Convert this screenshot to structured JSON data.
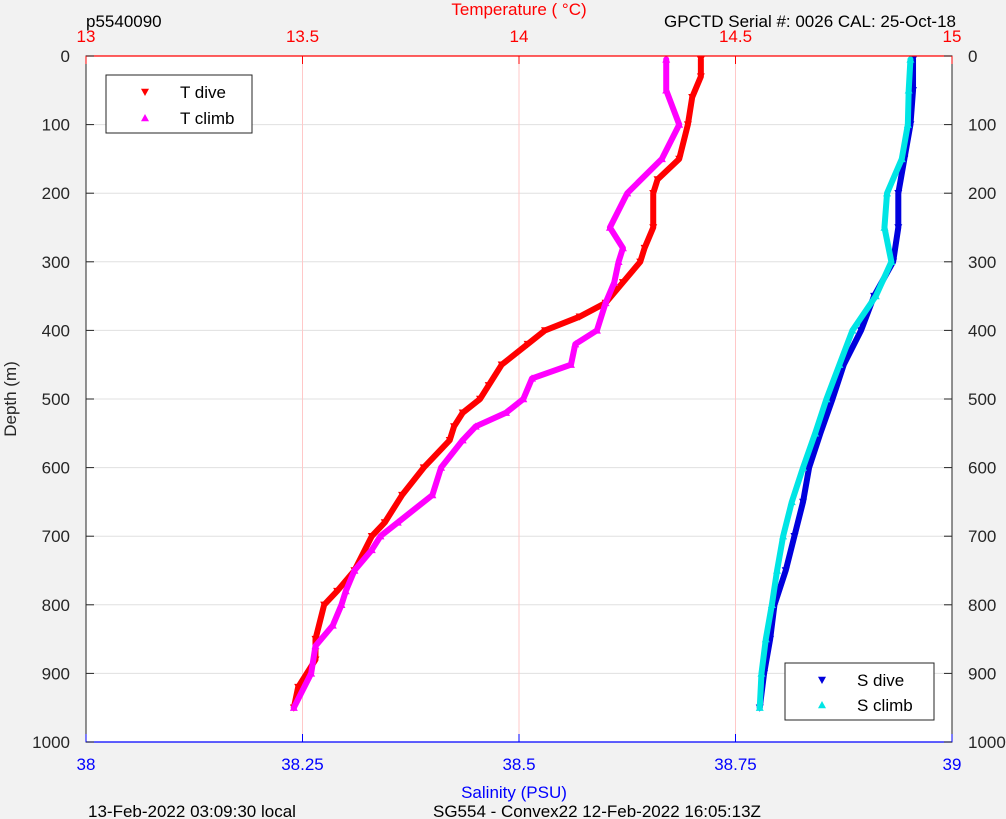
{
  "header": {
    "left": "p5540090",
    "right": "GPCTD Serial #: 0026 CAL: 25-Oct-18"
  },
  "footer": {
    "left": "13-Feb-2022 03:09:30 local",
    "right": "SG554 - Convex22 12-Feb-2022 16:05:13Z"
  },
  "colors": {
    "t_dive": "#ff0000",
    "t_climb": "#ff00ff",
    "s_dive": "#0000dd",
    "s_climb": "#00e5e5",
    "temp_axis": "#ff0000",
    "sal_axis": "#0000ff",
    "grid_temp": "#ffc8c8",
    "grid_depth": "#e0e0e0"
  },
  "chart_data": {
    "type": "scatter",
    "top_axis": {
      "label": "Temperature (   °C)",
      "range": [
        13,
        15
      ],
      "ticks": [
        "13",
        "13.5",
        "14",
        "14.5",
        "15"
      ]
    },
    "bottom_axis": {
      "label": "Salinity (PSU)",
      "range": [
        38,
        39
      ],
      "ticks": [
        "38",
        "38.25",
        "38.5",
        "38.75",
        "39"
      ]
    },
    "y_axis": {
      "label": "Depth (m)",
      "range": [
        0,
        1000
      ],
      "reversed": true,
      "ticks": [
        "0",
        "100",
        "200",
        "300",
        "400",
        "500",
        "600",
        "700",
        "800",
        "900",
        "1000"
      ]
    },
    "grid": true,
    "legends": [
      {
        "placement": "top-left",
        "entries": [
          "T dive",
          "T climb"
        ]
      },
      {
        "placement": "bottom-right",
        "entries": [
          "S dive",
          "S climb"
        ]
      }
    ],
    "series": [
      {
        "name": "T dive",
        "axis": "temperature",
        "marker": "triangle-down",
        "depth": [
          5,
          30,
          60,
          100,
          150,
          180,
          200,
          250,
          280,
          300,
          330,
          360,
          380,
          400,
          420,
          450,
          480,
          500,
          520,
          540,
          560,
          600,
          640,
          680,
          700,
          750,
          780,
          800,
          850,
          880,
          920,
          950
        ],
        "values": [
          14.42,
          14.42,
          14.4,
          14.39,
          14.37,
          14.32,
          14.31,
          14.31,
          14.29,
          14.28,
          14.24,
          14.2,
          14.14,
          14.06,
          14.02,
          13.96,
          13.93,
          13.91,
          13.87,
          13.85,
          13.84,
          13.78,
          13.73,
          13.69,
          13.66,
          13.62,
          13.58,
          13.55,
          13.53,
          13.53,
          13.49,
          13.48
        ]
      },
      {
        "name": "T climb",
        "axis": "temperature",
        "marker": "triangle-up",
        "depth": [
          5,
          50,
          100,
          150,
          200,
          250,
          280,
          300,
          330,
          360,
          400,
          420,
          450,
          470,
          500,
          520,
          540,
          560,
          600,
          640,
          680,
          700,
          720,
          750,
          780,
          800,
          830,
          860,
          900,
          950
        ],
        "values": [
          14.34,
          14.34,
          14.37,
          14.33,
          14.25,
          14.21,
          14.24,
          14.23,
          14.22,
          14.2,
          14.18,
          14.13,
          14.12,
          14.03,
          14.01,
          13.97,
          13.9,
          13.87,
          13.82,
          13.8,
          13.72,
          13.68,
          13.66,
          13.62,
          13.6,
          13.59,
          13.57,
          13.53,
          13.52,
          13.48
        ]
      },
      {
        "name": "S dive",
        "axis": "salinity",
        "marker": "triangle-down",
        "depth": [
          5,
          50,
          100,
          150,
          200,
          250,
          300,
          350,
          400,
          450,
          500,
          550,
          600,
          650,
          700,
          750,
          800,
          850,
          900,
          950
        ],
        "values": [
          38.955,
          38.955,
          38.952,
          38.945,
          38.938,
          38.938,
          38.932,
          38.91,
          38.895,
          38.875,
          38.862,
          38.848,
          38.835,
          38.828,
          38.818,
          38.808,
          38.795,
          38.79,
          38.783,
          38.778
        ]
      },
      {
        "name": "S climb",
        "axis": "salinity",
        "marker": "triangle-up",
        "depth": [
          5,
          50,
          100,
          150,
          200,
          250,
          300,
          350,
          400,
          450,
          500,
          550,
          600,
          650,
          700,
          750,
          800,
          850,
          900,
          950
        ],
        "values": [
          38.952,
          38.95,
          38.949,
          38.942,
          38.925,
          38.922,
          38.93,
          38.912,
          38.885,
          38.87,
          38.855,
          38.842,
          38.828,
          38.815,
          38.805,
          38.798,
          38.792,
          38.785,
          38.78,
          38.778
        ]
      }
    ]
  }
}
